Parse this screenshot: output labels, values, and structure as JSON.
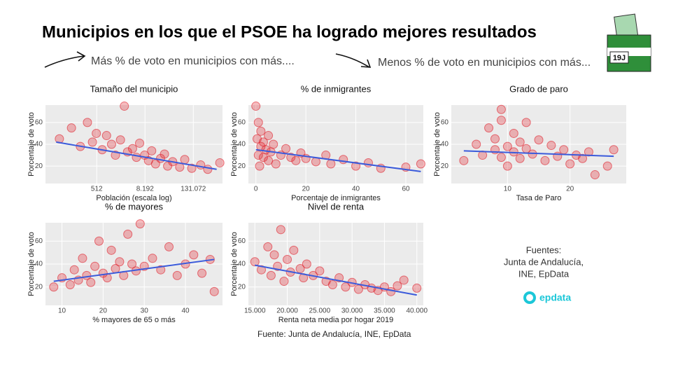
{
  "title": "Municipios en los que el PSOE ha logrado mejores resultados",
  "captions": [
    "Más % de voto en municipios con más....",
    "Menos % de voto en municipios con más..."
  ],
  "sources": [
    "Fuentes:",
    "Junta de Andalucía,",
    "INE, EpData"
  ],
  "logo": "epdata",
  "ballot_label": "19J",
  "footer": "Fuente: Junta de Andalucía, INE, EpData",
  "chart_data": [
    {
      "type": "scatter",
      "title": "Tamaño del municipio",
      "xlabel": "Población (escala log)",
      "ylabel": "Porcentaje de voto",
      "xscale": "log",
      "xlim": [
        27,
        700000
      ],
      "ylim": [
        4,
        76
      ],
      "xticks": [
        512,
        {
          "value": 8192,
          "label": "8.192"
        },
        {
          "value": 131072,
          "label": "131.072"
        }
      ],
      "yticks": [
        20,
        40,
        60
      ],
      "color": "#e0202c",
      "trend_color": "#3b5bdb",
      "grid": true,
      "x": [
        60,
        120,
        200,
        300,
        400,
        500,
        700,
        900,
        1200,
        1500,
        2000,
        2500,
        3000,
        4000,
        5000,
        6000,
        8000,
        10000,
        12000,
        15000,
        20000,
        25000,
        30000,
        40000,
        60000,
        80000,
        120000,
        200000,
        300000,
        600000
      ],
      "y": [
        45,
        55,
        38,
        60,
        42,
        50,
        35,
        48,
        40,
        30,
        44,
        75,
        33,
        36,
        28,
        41,
        30,
        25,
        34,
        22,
        27,
        31,
        20,
        24,
        19,
        26,
        18,
        21,
        17,
        23
      ],
      "trend_x": [
        50,
        500000
      ],
      "trend_y": [
        42,
        17
      ]
    },
    {
      "type": "scatter",
      "title": "% de inmigrantes",
      "xlabel": "Porcentaje de inmigrantes",
      "ylabel": "Porcentaje de voto",
      "xlim": [
        -3,
        67
      ],
      "ylim": [
        4,
        76
      ],
      "xticks": [
        0,
        20,
        40,
        60
      ],
      "yticks": [
        20,
        40,
        60
      ],
      "color": "#e0202c",
      "trend_color": "#3b5bdb",
      "grid": true,
      "x": [
        0,
        0.5,
        1,
        1,
        1.5,
        2,
        2,
        3,
        3,
        4,
        5,
        5,
        6,
        7,
        8,
        10,
        12,
        14,
        16,
        18,
        20,
        24,
        28,
        30,
        35,
        40,
        45,
        50,
        60,
        66
      ],
      "y": [
        75,
        45,
        30,
        60,
        20,
        38,
        52,
        28,
        42,
        35,
        25,
        48,
        33,
        40,
        22,
        30,
        36,
        28,
        25,
        32,
        27,
        24,
        30,
        22,
        26,
        20,
        23,
        18,
        19,
        22
      ],
      "trend_x": [
        0,
        66
      ],
      "trend_y": [
        35,
        15
      ]
    },
    {
      "type": "scatter",
      "title": "Grado de paro",
      "xlabel": "Tasa de Paro",
      "ylabel": "Porcentaje de voto",
      "xlim": [
        1,
        29
      ],
      "ylim": [
        4,
        76
      ],
      "xticks": [
        10,
        20
      ],
      "yticks": [
        20,
        40,
        60
      ],
      "color": "#e0202c",
      "trend_color": "#3b5bdb",
      "grid": true,
      "x": [
        3,
        5,
        6,
        7,
        8,
        8,
        9,
        9,
        10,
        10,
        11,
        11,
        12,
        12,
        13,
        13,
        14,
        15,
        16,
        17,
        18,
        19,
        20,
        21,
        22,
        23,
        24,
        26,
        27,
        9
      ],
      "y": [
        25,
        40,
        30,
        55,
        35,
        45,
        28,
        62,
        38,
        20,
        50,
        33,
        42,
        27,
        60,
        36,
        31,
        44,
        25,
        39,
        29,
        35,
        22,
        30,
        27,
        33,
        12,
        20,
        35,
        72
      ],
      "trend_x": [
        3,
        27
      ],
      "trend_y": [
        34,
        29
      ]
    },
    {
      "type": "scatter",
      "title": "% de mayores",
      "xlabel": "% mayores de 65 o más",
      "ylabel": "Porcentaje de voto",
      "xlim": [
        6,
        49
      ],
      "ylim": [
        4,
        76
      ],
      "xticks": [
        10,
        20,
        30,
        40
      ],
      "yticks": [
        20,
        40,
        60
      ],
      "color": "#e0202c",
      "trend_color": "#3b5bdb",
      "grid": true,
      "x": [
        8,
        10,
        12,
        13,
        14,
        15,
        16,
        17,
        18,
        19,
        20,
        21,
        22,
        23,
        24,
        25,
        26,
        27,
        28,
        29,
        30,
        32,
        34,
        36,
        38,
        40,
        42,
        44,
        46,
        47
      ],
      "y": [
        20,
        28,
        22,
        35,
        26,
        45,
        30,
        24,
        38,
        60,
        32,
        28,
        52,
        36,
        42,
        30,
        66,
        40,
        34,
        75,
        38,
        45,
        35,
        55,
        30,
        40,
        48,
        32,
        44,
        16
      ],
      "trend_x": [
        8,
        47
      ],
      "trend_y": [
        25,
        44
      ]
    },
    {
      "type": "scatter",
      "title": "Nivel de renta",
      "xlabel": "Renta neta media por hogar 2019",
      "ylabel": "Porcentaje de voto",
      "xlim": [
        14000,
        41000
      ],
      "ylim": [
        4,
        76
      ],
      "xticks": [
        {
          "value": 15000,
          "label": "15.000"
        },
        {
          "value": 20000,
          "label": "20.000"
        },
        {
          "value": 25000,
          "label": "25.000"
        },
        {
          "value": 30000,
          "label": "30.000"
        },
        {
          "value": 35000,
          "label": "35.000"
        },
        {
          "value": 40000,
          "label": "40.000"
        }
      ],
      "yticks": [
        20,
        40,
        60
      ],
      "color": "#e0202c",
      "trend_color": "#3b5bdb",
      "grid": true,
      "x": [
        15000,
        16000,
        17000,
        17500,
        18000,
        18500,
        19000,
        19500,
        20000,
        20500,
        21000,
        22000,
        22500,
        23000,
        24000,
        25000,
        26000,
        27000,
        28000,
        29000,
        30000,
        31000,
        32000,
        33000,
        34000,
        35000,
        36000,
        37000,
        38000,
        40000
      ],
      "y": [
        42,
        35,
        55,
        30,
        48,
        38,
        70,
        25,
        44,
        33,
        52,
        36,
        28,
        40,
        30,
        34,
        25,
        22,
        28,
        20,
        24,
        18,
        22,
        19,
        17,
        20,
        16,
        21,
        26,
        19
      ],
      "trend_x": [
        15000,
        40000
      ],
      "trend_y": [
        39,
        13
      ]
    }
  ]
}
